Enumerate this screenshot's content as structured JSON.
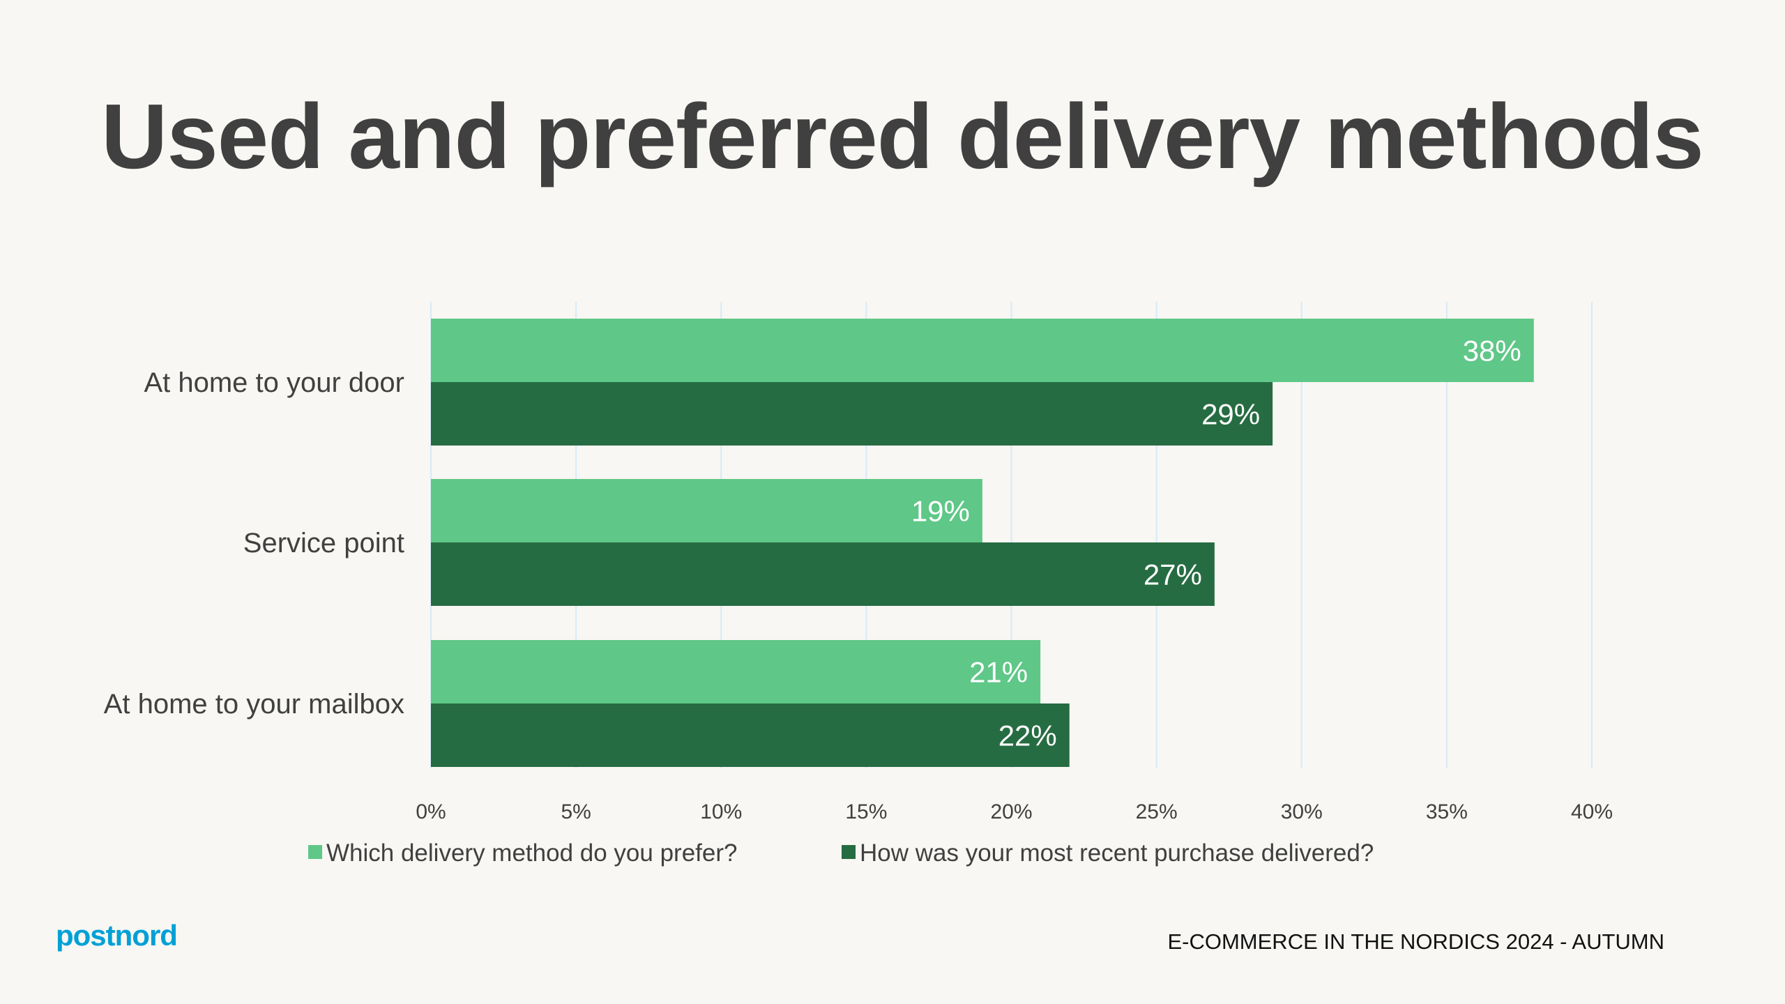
{
  "title": "Used and preferred delivery methods",
  "footer": "E-COMMERCE IN THE NORDICS 2024 - AUTUMN",
  "logo": "postnord",
  "colors": {
    "preferred": "#5fc787",
    "recent": "#266c42",
    "grid": "#d6eaf8",
    "logo": "#00a0d6"
  },
  "chart_data": {
    "type": "bar",
    "orientation": "horizontal",
    "categories": [
      "At home to your door",
      "Service point",
      "At home to your mailbox"
    ],
    "series": [
      {
        "name": "Which delivery method do you prefer?",
        "values": [
          38,
          19,
          21
        ],
        "labels": [
          "38%",
          "19%",
          "21%"
        ]
      },
      {
        "name": "How was your most recent purchase delivered?",
        "values": [
          29,
          27,
          22
        ],
        "labels": [
          "29%",
          "27%",
          "22%"
        ]
      }
    ],
    "xlim": [
      0,
      40
    ],
    "xticks": [
      "0%",
      "5%",
      "10%",
      "15%",
      "20%",
      "25%",
      "30%",
      "35%",
      "40%"
    ],
    "grid": true,
    "legend": "bottom"
  }
}
